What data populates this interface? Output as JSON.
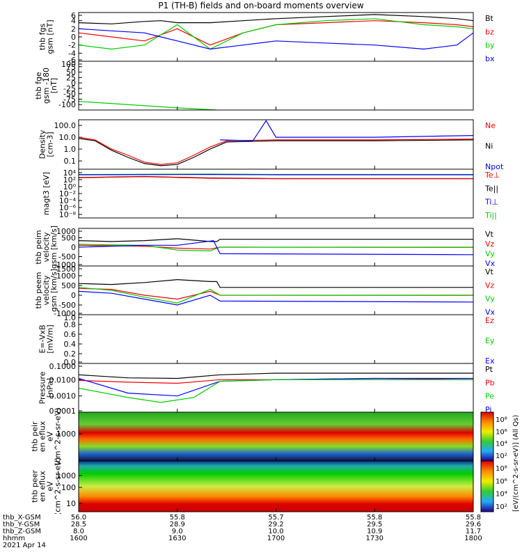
{
  "title": "P1 (TH-B) fields and on-board moments overview",
  "colors": {
    "black": "#000000",
    "red": "#ff0000",
    "green": "#00cc00",
    "blue": "#0000ff"
  },
  "chart_data": [
    {
      "type": "line",
      "ylabel": "thb fgs gsm [nT]",
      "yticks": [
        "6",
        "4",
        "2",
        "0",
        "-2",
        "-4",
        "-6"
      ],
      "ylim": [
        -6,
        6
      ],
      "legend": [
        {
          "name": "Bt",
          "color": "#000000"
        },
        {
          "name": "bz",
          "color": "#ff0000"
        },
        {
          "name": "by",
          "color": "#00cc00"
        },
        {
          "name": "bx",
          "color": "#0000ff"
        }
      ],
      "series": [
        {
          "name": "Bt",
          "color": "#000000",
          "x": [
            1600,
            1610,
            1620,
            1625,
            1630,
            1640,
            1650,
            1700,
            1715,
            1730,
            1745,
            1755,
            1800
          ],
          "y": [
            3.5,
            3.2,
            3.8,
            4,
            3.5,
            3.5,
            4,
            4.5,
            5,
            5.5,
            5,
            4.5,
            4
          ]
        },
        {
          "name": "bz",
          "color": "#ff0000",
          "x": [
            1600,
            1610,
            1620,
            1625,
            1630,
            1640,
            1650,
            1700,
            1715,
            1730,
            1745,
            1755,
            1800
          ],
          "y": [
            1,
            0,
            -1,
            0.5,
            2,
            -2,
            1,
            3,
            3.5,
            4,
            3.5,
            3,
            2.5
          ]
        },
        {
          "name": "by",
          "color": "#00cc00",
          "x": [
            1600,
            1610,
            1620,
            1625,
            1630,
            1640,
            1650,
            1700,
            1715,
            1730,
            1745,
            1755,
            1800
          ],
          "y": [
            -2,
            -3,
            -2,
            0.5,
            3,
            -3,
            1,
            3,
            4,
            4.5,
            3,
            2.5,
            2
          ]
        },
        {
          "name": "bx",
          "color": "#0000ff",
          "x": [
            1600,
            1610,
            1620,
            1625,
            1630,
            1640,
            1650,
            1700,
            1715,
            1730,
            1745,
            1755,
            1800
          ],
          "y": [
            2,
            1.5,
            1,
            0,
            -1,
            -3,
            -2,
            -1,
            -1.5,
            -2,
            -3,
            -2,
            1
          ]
        }
      ]
    },
    {
      "type": "line",
      "ylabel": "thb fge gsm -180 [nT]",
      "yticks": [
        "100",
        "75",
        "50",
        "25",
        "0",
        "-25",
        "-50",
        "-75",
        "-100"
      ],
      "ylim": [
        -125,
        100
      ],
      "legend": [],
      "series": [
        {
          "name": "",
          "color": "#00cc00",
          "x": [
            1600,
            1630,
            1642
          ],
          "y": [
            -85,
            -115,
            -125
          ]
        }
      ]
    },
    {
      "type": "line",
      "ylabel": "Density [cm-3]",
      "yticks": [
        "100.0",
        "10.0",
        "1.0",
        "0.1"
      ],
      "yscale": "log",
      "ylim": [
        0.02,
        300
      ],
      "legend": [
        {
          "name": "Ne",
          "color": "#ff0000"
        },
        {
          "name": "Ni",
          "color": "#000000"
        },
        {
          "name": "Npot",
          "color": "#0000ff"
        }
      ],
      "series": [
        {
          "name": "Ni",
          "color": "#000000",
          "x": [
            1600,
            1605,
            1610,
            1615,
            1620,
            1625,
            1630,
            1635,
            1640,
            1645,
            1700,
            1730,
            1800
          ],
          "y": [
            8,
            5,
            0.8,
            0.2,
            0.06,
            0.04,
            0.05,
            0.2,
            1,
            4,
            5,
            5,
            6
          ]
        },
        {
          "name": "Ne",
          "color": "#ff0000",
          "x": [
            1600,
            1605,
            1610,
            1615,
            1620,
            1625,
            1630,
            1635,
            1640,
            1645,
            1700,
            1730,
            1800
          ],
          "y": [
            10,
            6,
            1,
            0.3,
            0.08,
            0.05,
            0.07,
            0.3,
            1.5,
            5,
            6,
            6,
            7
          ]
        },
        {
          "name": "Npot",
          "color": "#0000ff",
          "x": [
            1643,
            1653,
            1657,
            1700,
            1730,
            1800
          ],
          "y": [
            6,
            5,
            250,
            10,
            10,
            14
          ]
        }
      ]
    },
    {
      "type": "line",
      "ylabel": "magt3 [eV]",
      "yticks": [
        "10⁴",
        "10²",
        "10⁰",
        "10⁻²",
        "10⁻⁴",
        "10⁻⁶",
        "10⁻⁸"
      ],
      "yscale": "log",
      "ylim": [
        1e-09,
        100000.0
      ],
      "legend": [
        {
          "name": "Te⊥",
          "color": "#ff0000"
        },
        {
          "name": "Te||",
          "color": "#000000"
        },
        {
          "name": "Ti⊥",
          "color": "#0000ff"
        },
        {
          "name": "Ti||",
          "color": "#00cc00"
        }
      ],
      "series": [
        {
          "name": "Ti||",
          "color": "#00cc00",
          "x": [
            1600,
            1640,
            1700,
            1800
          ],
          "y": [
            3000,
            4000,
            3000,
            3000
          ]
        },
        {
          "name": "Ti⊥",
          "color": "#0000ff",
          "x": [
            1600,
            1640,
            1700,
            1800
          ],
          "y": [
            2500,
            3000,
            2500,
            2500
          ]
        },
        {
          "name": "Te||",
          "color": "#000000",
          "x": [
            1600,
            1620,
            1640,
            1700,
            1800
          ],
          "y": [
            400,
            800,
            300,
            200,
            200
          ]
        },
        {
          "name": "Te⊥",
          "color": "#ff0000",
          "x": [
            1600,
            1620,
            1640,
            1700,
            1800
          ],
          "y": [
            350,
            700,
            250,
            180,
            180
          ]
        }
      ]
    },
    {
      "type": "line",
      "ylabel": "thb peim velocity gsm [km/s]",
      "yticks": [
        "1000",
        "500",
        "0",
        "-500",
        "-1000"
      ],
      "ylim": [
        -1000,
        1000
      ],
      "legend": [
        {
          "name": "Vt",
          "color": "#000000"
        },
        {
          "name": "Vz",
          "color": "#ff0000"
        },
        {
          "name": "Vy",
          "color": "#00cc00"
        },
        {
          "name": "Vx",
          "color": "#0000ff"
        }
      ],
      "series": [
        {
          "name": "Vt",
          "color": "#000000",
          "x": [
            1600,
            1610,
            1620,
            1630,
            1640,
            1642,
            1643,
            1800
          ],
          "y": [
            350,
            300,
            350,
            450,
            300,
            300,
            420,
            420
          ]
        },
        {
          "name": "Vz",
          "color": "#ff0000",
          "x": [
            1600,
            1620,
            1630,
            1640,
            1643,
            1800
          ],
          "y": [
            100,
            50,
            -50,
            -100,
            0,
            -10
          ]
        },
        {
          "name": "Vy",
          "color": "#00cc00",
          "x": [
            1600,
            1620,
            1630,
            1640,
            1643,
            1800
          ],
          "y": [
            150,
            100,
            -150,
            -200,
            0,
            0
          ]
        },
        {
          "name": "Vx",
          "color": "#0000ff",
          "x": [
            1600,
            1620,
            1630,
            1641,
            1643,
            1800
          ],
          "y": [
            0,
            100,
            100,
            350,
            -350,
            -400
          ]
        }
      ]
    },
    {
      "type": "line",
      "ylabel": "thb peem velocity gsm [km/s]",
      "yticks": [
        "1500",
        "1000",
        "500",
        "0",
        "-500",
        "-1000"
      ],
      "ylim": [
        -1000,
        1500
      ],
      "legend": [
        {
          "name": "Vt",
          "color": "#000000"
        },
        {
          "name": "Vz",
          "color": "#ff0000"
        },
        {
          "name": "Vy",
          "color": "#00cc00"
        },
        {
          "name": "Vx",
          "color": "#0000ff"
        }
      ],
      "series": [
        {
          "name": "Vt",
          "color": "#000000",
          "x": [
            1600,
            1610,
            1620,
            1630,
            1640,
            1642,
            1643,
            1800
          ],
          "y": [
            600,
            550,
            650,
            800,
            700,
            700,
            400,
            400
          ]
        },
        {
          "name": "Vz",
          "color": "#ff0000",
          "x": [
            1600,
            1610,
            1620,
            1630,
            1640,
            1643,
            1800
          ],
          "y": [
            350,
            300,
            0,
            -200,
            200,
            0,
            0
          ]
        },
        {
          "name": "Vy",
          "color": "#00cc00",
          "x": [
            1600,
            1610,
            1620,
            1630,
            1640,
            1643,
            1800
          ],
          "y": [
            400,
            250,
            -100,
            -400,
            300,
            0,
            -10
          ]
        },
        {
          "name": "Vx",
          "color": "#0000ff",
          "x": [
            1600,
            1610,
            1620,
            1630,
            1640,
            1643,
            1800
          ],
          "y": [
            200,
            100,
            -200,
            -500,
            0,
            -300,
            -350
          ]
        }
      ]
    },
    {
      "type": "line",
      "ylabel": "E=-VxB [mV/m]",
      "yticks": [
        "1.0",
        "0.8",
        "0.6",
        "0.4",
        "0.2",
        "0.0"
      ],
      "ylim": [
        0,
        1
      ],
      "legend": [
        {
          "name": "Ez",
          "color": "#ff0000"
        },
        {
          "name": "Ey",
          "color": "#00cc00"
        },
        {
          "name": "Ex",
          "color": "#0000ff"
        }
      ],
      "series": []
    },
    {
      "type": "line",
      "ylabel": "Pressure [nPa]",
      "yticks": [
        "0.1000",
        "0.0100",
        "0.0010",
        "0.0001"
      ],
      "yscale": "log",
      "ylim": [
        0.0001,
        0.1
      ],
      "legend": [
        {
          "name": "Pt",
          "color": "#000000"
        },
        {
          "name": "Pb",
          "color": "#ff0000"
        },
        {
          "name": "Pe",
          "color": "#00cc00"
        },
        {
          "name": "Pi",
          "color": "#0000ff"
        }
      ],
      "series": [
        {
          "name": "Pt",
          "color": "#000000",
          "x": [
            1600,
            1615,
            1630,
            1643,
            1700,
            1730,
            1800
          ],
          "y": [
            0.02,
            0.013,
            0.012,
            0.02,
            0.025,
            0.025,
            0.025
          ]
        },
        {
          "name": "Pb",
          "color": "#ff0000",
          "x": [
            1600,
            1615,
            1630,
            1643,
            1700,
            1730,
            1800
          ],
          "y": [
            0.009,
            0.007,
            0.006,
            0.01,
            0.01,
            0.012,
            0.01
          ]
        },
        {
          "name": "Pi",
          "color": "#0000ff",
          "x": [
            1600,
            1615,
            1630,
            1643,
            1700,
            1730,
            1800
          ],
          "y": [
            0.012,
            0.0015,
            0.001,
            0.008,
            0.01,
            0.012,
            0.012
          ]
        },
        {
          "name": "Pe",
          "color": "#00cc00",
          "x": [
            1600,
            1615,
            1625,
            1635,
            1643,
            1700,
            1730,
            1800
          ],
          "y": [
            0.003,
            0.0008,
            0.0004,
            0.0008,
            0.008,
            0.01,
            0.01,
            0.01
          ]
        }
      ]
    },
    {
      "type": "heatmap",
      "ylabel": "thb peir en eflux eV (cm^2-s-sr-eV)",
      "yticks": [
        "1000"
      ],
      "yscale": "log",
      "colorbar_ticks": [
        "10⁸",
        "10⁶",
        "10⁴",
        "10²"
      ],
      "colorbar_label": "[eV/(cm^2-s-sr-eV)] (All Qs)"
    },
    {
      "type": "heatmap",
      "ylabel": "thb peer en eflux eV (cm^2-s-sr-eV)",
      "yticks": [
        "1000",
        "100",
        "10"
      ],
      "yscale": "log",
      "colorbar_ticks": [
        "10⁸",
        "10⁶",
        "10⁴",
        "10²"
      ],
      "colorbar_label": "[eV/(cm^2-s-sr-eV)] (All Qs)"
    }
  ],
  "footer": {
    "rows": [
      {
        "label": "thb_X-GSM",
        "values": [
          "56.0",
          "55.8",
          "55.7",
          "55.8",
          "55.8"
        ]
      },
      {
        "label": "thb_Y-GSM",
        "values": [
          "28.5",
          "28.9",
          "29.2",
          "29.5",
          "29.6"
        ]
      },
      {
        "label": "thb_Z-GSM",
        "values": [
          "8.0",
          "9.0",
          "10.0",
          "10.9",
          "11.7"
        ]
      },
      {
        "label": "hhmm",
        "values": [
          "1600",
          "1630",
          "1700",
          "1730",
          "1800"
        ]
      }
    ],
    "date": "2021 Apr 14"
  }
}
